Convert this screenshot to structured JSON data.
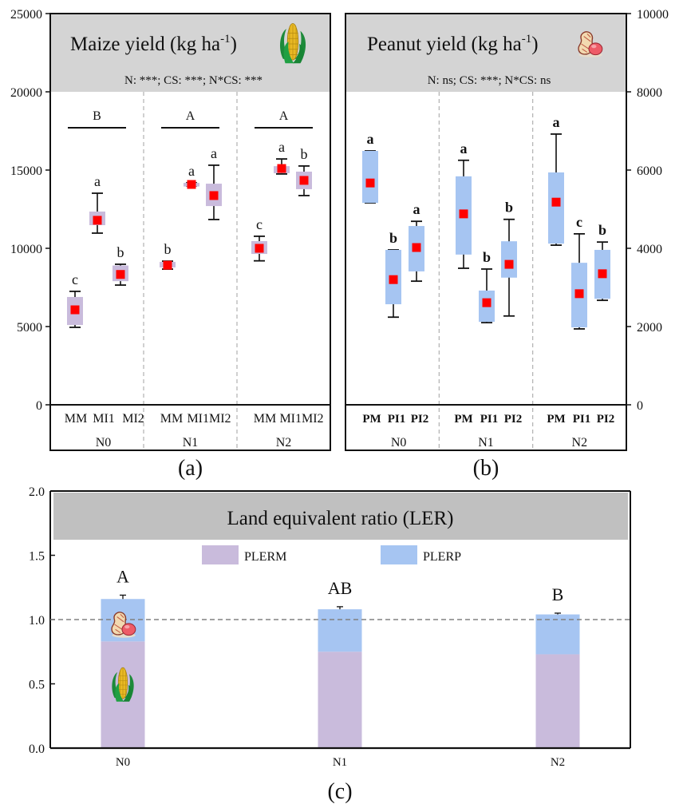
{
  "chart_data": [
    {
      "id": "a",
      "type": "box",
      "panel_label": "(a)",
      "title": "Maize yield (kg ha",
      "title_sup": "-1",
      "title_close": ")",
      "icon": "corn-icon",
      "stats": "N: ***; CS: ***; N*CS: ***",
      "ylim": [
        0,
        25000
      ],
      "yticks": [
        0,
        5000,
        10000,
        15000,
        20000,
        25000
      ],
      "yaxis_side": "left",
      "groups": [
        {
          "label": "N0",
          "group_letter": "B"
        },
        {
          "label": "N1",
          "group_letter": "A"
        },
        {
          "label": "N2",
          "group_letter": "A"
        }
      ],
      "categories": [
        "MM",
        "MI1",
        "MI2"
      ],
      "category_labels": [
        [
          "MM",
          "MI1",
          "MI2"
        ],
        [
          "MM",
          "MI1MI2",
          ""
        ],
        [
          "MM",
          "MI1MI2",
          ""
        ]
      ],
      "box_color": "#c9bbdc",
      "mean_color": "#ff0000",
      "boxes": [
        {
          "group": "N0",
          "cat": "MM",
          "whisker_low": 4950,
          "q1": 5100,
          "mean": 6070,
          "q3": 6890,
          "whisker_high": 7250,
          "letter": "c"
        },
        {
          "group": "N0",
          "cat": "MI1",
          "whisker_low": 10970,
          "q1": 11480,
          "mean": 11790,
          "q3": 12350,
          "whisker_high": 13520,
          "letter": "a"
        },
        {
          "group": "N0",
          "cat": "MI2",
          "whisker_low": 7650,
          "q1": 7900,
          "mean": 8330,
          "q3": 8900,
          "whisker_high": 8980,
          "letter": "b"
        },
        {
          "group": "N1",
          "cat": "MM",
          "whisker_low": 8670,
          "q1": 8780,
          "mean": 8920,
          "q3": 9130,
          "whisker_high": 9180,
          "letter": "b"
        },
        {
          "group": "N1",
          "cat": "MI1",
          "whisker_low": 13980,
          "q1": 13950,
          "mean": 14080,
          "q3": 14180,
          "whisker_high": 14180,
          "letter": "a"
        },
        {
          "group": "N1",
          "cat": "MI2",
          "whisker_low": 11840,
          "q1": 12700,
          "mean": 13370,
          "q3": 14130,
          "whisker_high": 15310,
          "letter": "a"
        },
        {
          "group": "N2",
          "cat": "MM",
          "whisker_low": 9200,
          "q1": 9640,
          "mean": 10000,
          "q3": 10460,
          "whisker_high": 10770,
          "letter": "c"
        },
        {
          "group": "N2",
          "cat": "MI1",
          "whisker_low": 14750,
          "q1": 14800,
          "mean": 15100,
          "q3": 15250,
          "whisker_high": 15710,
          "letter": "a"
        },
        {
          "group": "N2",
          "cat": "MI2",
          "whisker_low": 13370,
          "q1": 13780,
          "mean": 14340,
          "q3": 14900,
          "whisker_high": 15260,
          "letter": "b"
        }
      ]
    },
    {
      "id": "b",
      "type": "box",
      "panel_label": "(b)",
      "title": "Peanut yield (kg ha",
      "title_sup": "-1",
      "title_close": ")",
      "icon": "peanut-icon",
      "stats": "N: ns; CS: ***; N*CS: ns",
      "ylim": [
        0,
        10000
      ],
      "yticks": [
        0,
        2000,
        4000,
        6000,
        8000,
        10000
      ],
      "yaxis_side": "right",
      "groups": [
        {
          "label": "N0",
          "group_letter": ""
        },
        {
          "label": "N1",
          "group_letter": ""
        },
        {
          "label": "N2",
          "group_letter": ""
        }
      ],
      "categories": [
        "PM",
        "PI1",
        "PI2"
      ],
      "category_labels": [
        [
          "PM",
          "PI1",
          "PI2"
        ],
        [
          "PM",
          "PI1",
          "PI2"
        ],
        [
          "PM",
          "PI1",
          "PI2"
        ]
      ],
      "box_color": "#a6c5f2",
      "mean_color": "#ff0000",
      "boxes": [
        {
          "group": "N0",
          "cat": "PM",
          "whisker_low": 5160,
          "q1": 5160,
          "mean": 5670,
          "q3": 6490,
          "whisker_high": 6490,
          "letter": "a"
        },
        {
          "group": "N0",
          "cat": "PI1",
          "whisker_low": 2240,
          "q1": 2570,
          "mean": 3200,
          "q3": 3960,
          "whisker_high": 3960,
          "letter": "b"
        },
        {
          "group": "N0",
          "cat": "PI2",
          "whisker_low": 3160,
          "q1": 3410,
          "mean": 4020,
          "q3": 4570,
          "whisker_high": 4690,
          "letter": "a"
        },
        {
          "group": "N1",
          "cat": "PM",
          "whisker_low": 3490,
          "q1": 3840,
          "mean": 4880,
          "q3": 5840,
          "whisker_high": 6250,
          "letter": "a"
        },
        {
          "group": "N1",
          "cat": "PI1",
          "whisker_low": 2100,
          "q1": 2120,
          "mean": 2610,
          "q3": 2920,
          "whisker_high": 3470,
          "letter": "b"
        },
        {
          "group": "N1",
          "cat": "PI2",
          "whisker_low": 2270,
          "q1": 3250,
          "mean": 3590,
          "q3": 4180,
          "whisker_high": 4740,
          "letter": "b"
        },
        {
          "group": "N2",
          "cat": "PM",
          "whisker_low": 4080,
          "q1": 4120,
          "mean": 5180,
          "q3": 5940,
          "whisker_high": 6920,
          "letter": "a"
        },
        {
          "group": "N2",
          "cat": "PI1",
          "whisker_low": 1940,
          "q1": 1980,
          "mean": 2840,
          "q3": 3630,
          "whisker_high": 4370,
          "letter": "c"
        },
        {
          "group": "N2",
          "cat": "PI2",
          "whisker_low": 2670,
          "q1": 2710,
          "mean": 3350,
          "q3": 3960,
          "whisker_high": 4160,
          "letter": "b"
        }
      ]
    },
    {
      "id": "c",
      "type": "bar",
      "stacked": true,
      "panel_label": "(c)",
      "title": "Land equivalent ratio (LER)",
      "ylim": [
        0,
        2.0
      ],
      "yticks": [
        "0.0",
        "0.5",
        "1.0",
        "1.5",
        "2.0"
      ],
      "reference_line": 1.0,
      "categories": [
        "N0",
        "N1",
        "N2"
      ],
      "legend": [
        {
          "name": "PLERM",
          "color": "#c9bbdc"
        },
        {
          "name": "PLERP",
          "color": "#a6c5f2"
        }
      ],
      "legend_position": "top-center",
      "series": [
        {
          "name": "PLERM",
          "values": [
            0.83,
            0.75,
            0.73
          ]
        },
        {
          "name": "PLERP",
          "values": [
            0.33,
            0.33,
            0.31
          ]
        }
      ],
      "totals": [
        1.16,
        1.08,
        1.04
      ],
      "error_top": [
        1.19,
        1.1,
        1.05
      ],
      "letters": [
        "A",
        "AB",
        "B"
      ],
      "icons_in_n0": [
        "peanut-icon",
        "corn-icon"
      ]
    }
  ]
}
